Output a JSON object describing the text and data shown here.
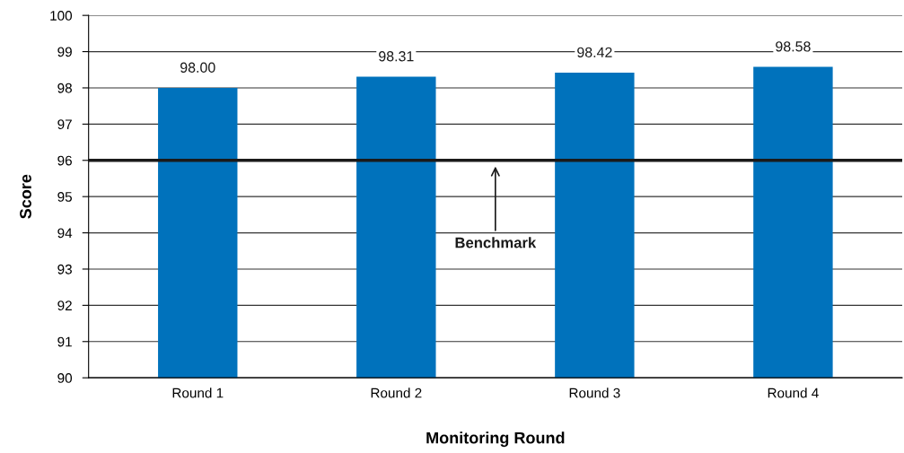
{
  "chart_data": {
    "type": "bar",
    "xlabel": "Monitoring Round",
    "ylabel": "Score",
    "categories": [
      "Round 1",
      "Round 2",
      "Round 3",
      "Round 4"
    ],
    "values": [
      98.0,
      98.31,
      98.42,
      98.58
    ],
    "value_labels": [
      "98.00",
      "98.31",
      "98.42",
      "98.58"
    ],
    "color": "#0072bc",
    "ylim": [
      90,
      100
    ],
    "yticks": [
      90,
      91,
      92,
      93,
      94,
      95,
      96,
      97,
      98,
      99,
      100
    ],
    "grid": "y",
    "legend": false,
    "ref_lines": [
      {
        "axis": "y",
        "value": 96,
        "label": "Benchmark",
        "color": "#1a1a1a",
        "line_style": "solid"
      }
    ]
  }
}
